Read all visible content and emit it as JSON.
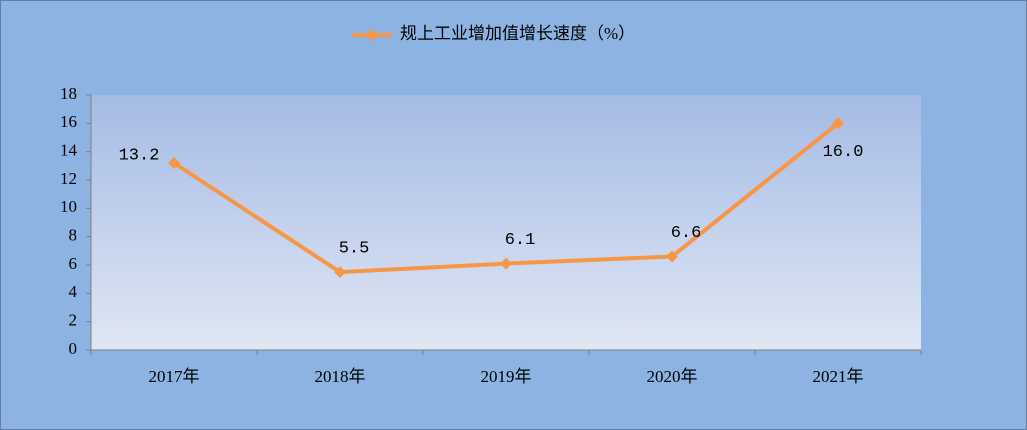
{
  "chart_data": {
    "type": "line",
    "categories": [
      "2017年",
      "2018年",
      "2019年",
      "2020年",
      "2021年"
    ],
    "series": [
      {
        "name": "规上工业增加值增长速度（%）",
        "color": "#f79646",
        "values": [
          13.2,
          5.5,
          6.1,
          6.6,
          16.0
        ],
        "value_labels": [
          "13.2",
          "5.5",
          "6.1",
          "6.6",
          "16.0"
        ]
      }
    ],
    "ylim": [
      0,
      18
    ],
    "yticks": [
      0,
      2,
      4,
      6,
      8,
      10,
      12,
      14,
      16,
      18
    ],
    "legend": "top"
  }
}
